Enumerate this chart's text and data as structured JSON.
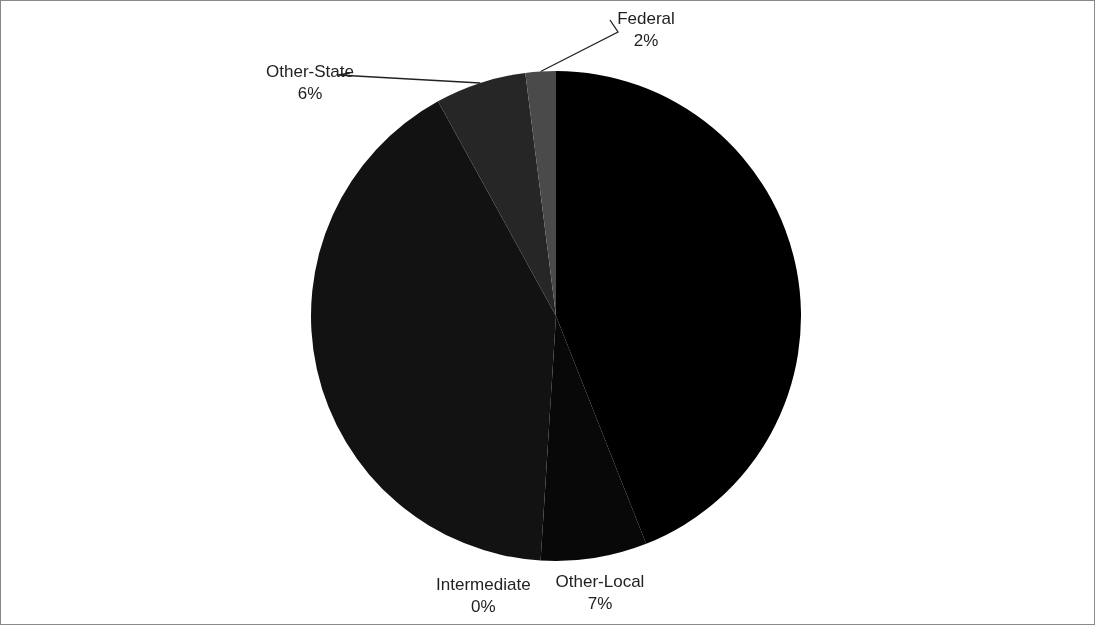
{
  "chart_data": {
    "type": "pie",
    "categories": [
      null,
      "Other-Local",
      "Intermediate",
      null,
      "Other-State",
      "Federal"
    ],
    "values": [
      44,
      7,
      0,
      41,
      6,
      2
    ],
    "value_labels": [
      null,
      "7%",
      "0%",
      null,
      "6%",
      "2%"
    ],
    "colors": [
      "#000000",
      "#080808",
      "#0c0c0c",
      "#121212",
      "#262626",
      "#4a4a4a"
    ],
    "legend": false
  }
}
